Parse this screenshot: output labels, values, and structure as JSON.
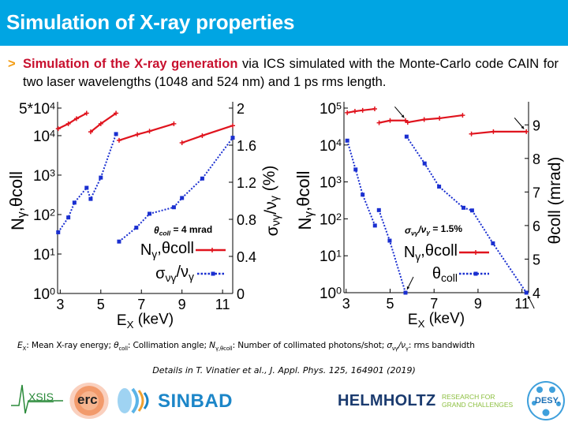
{
  "header": {
    "title": "Simulation of X-ray properties"
  },
  "bullet": {
    "marker": ">",
    "highlight": "Simulation of the X-ray generation",
    "text": " via ICS simulated with the Monte-Carlo code CAIN for two laser wavelengths (1048 and 524 nm) and 1 ps rms length."
  },
  "colors": {
    "header": "#00a5e3",
    "highlight": "#c8102e",
    "bullet_marker": "#f39c12",
    "series_red": "#e0141e",
    "series_blue": "#1a2fd0"
  },
  "chart_data": [
    {
      "type": "line",
      "xlim": [
        2.87,
        11.5
      ],
      "ylim": [
        1,
        50000
      ],
      "y_scale": "log",
      "y2lim": [
        0,
        2
      ],
      "grid": false,
      "legend_position": "bottom-right",
      "xticks": [
        {
          "value": 3,
          "label": "3"
        },
        {
          "value": 5,
          "label": "5"
        },
        {
          "value": 7,
          "label": "7"
        },
        {
          "value": 9,
          "label": "9"
        },
        {
          "value": 11,
          "label": "11"
        }
      ],
      "yticks": [
        {
          "value": 50000,
          "label": [
            {
              "t": "5*10"
            },
            {
              "t": "4",
              "sup": true
            }
          ]
        },
        {
          "value": 10000,
          "label": [
            {
              "t": "10"
            },
            {
              "t": "4",
              "sup": true
            }
          ]
        },
        {
          "value": 1000,
          "label": [
            {
              "t": "10"
            },
            {
              "t": "3",
              "sup": true
            }
          ]
        },
        {
          "value": 100,
          "label": [
            {
              "t": "10"
            },
            {
              "t": "2",
              "sup": true
            }
          ]
        },
        {
          "value": 10,
          "label": [
            {
              "t": "10"
            },
            {
              "t": "1",
              "sup": true
            }
          ]
        },
        {
          "value": 1,
          "label": [
            {
              "t": "10"
            },
            {
              "t": "0",
              "sup": true
            }
          ]
        }
      ],
      "y2ticks": [
        {
          "value": 2,
          "label": "2"
        },
        {
          "value": 1.6,
          "label": "1.6"
        },
        {
          "value": 1.2,
          "label": "1.2"
        },
        {
          "value": 0.8,
          "label": "0.8"
        },
        {
          "value": 0.4,
          "label": "0.4"
        },
        {
          "value": 0,
          "label": "0"
        }
      ],
      "xlabel": [
        {
          "t": "E"
        },
        {
          "t": "X",
          "sub": true
        },
        {
          "t": " (keV)"
        }
      ],
      "ylabel": [
        {
          "t": "N"
        },
        {
          "t": "γ",
          "sub": true
        },
        {
          "t": ",θcoll"
        }
      ],
      "y2label": [
        {
          "t": "σ"
        },
        {
          "t": "νγ",
          "sub": true
        },
        {
          "t": "/ν"
        },
        {
          "t": "γ",
          "sub": true
        },
        {
          "t": " (%)"
        }
      ],
      "annotation": [
        {
          "t": "θ",
          "italic": true
        },
        {
          "t": "coll",
          "sub": true,
          "italic": true
        },
        {
          "t": " = 4 mrad"
        }
      ],
      "series": [
        {
          "name": [
            {
              "t": "N"
            },
            {
              "t": "γ",
              "sub": true
            },
            {
              "t": ",θcoll"
            }
          ],
          "axis": "y",
          "color": "#e0141e",
          "style": "solid",
          "marker": "plus",
          "segments": [
            [
              [
                2.9,
                15000
              ],
              [
                3.4,
                20000
              ],
              [
                3.8,
                27000
              ],
              [
                4.3,
                37000
              ]
            ],
            [
              [
                4.5,
                12500
              ],
              [
                5.0,
                20000
              ],
              [
                5.75,
                37000
              ]
            ],
            [
              [
                5.9,
                7600
              ],
              [
                6.8,
                10700
              ],
              [
                7.4,
                13000
              ],
              [
                8.6,
                20000
              ]
            ],
            [
              [
                9.0,
                6600
              ],
              [
                10.0,
                10000
              ],
              [
                11.5,
                18000
              ]
            ]
          ]
        },
        {
          "name": [
            {
              "t": "σ"
            },
            {
              "t": "νγ",
              "sub": true
            },
            {
              "t": "/ν"
            },
            {
              "t": "γ",
              "sub": true
            }
          ],
          "axis": "y2",
          "color": "#1a2fd0",
          "style": "dotted",
          "marker": "square",
          "segments": [
            [
              [
                2.9,
                0.66
              ],
              [
                3.4,
                0.82
              ],
              [
                3.7,
                0.98
              ],
              [
                4.3,
                1.14
              ],
              [
                4.5,
                1.02
              ],
              [
                5.0,
                1.25
              ],
              [
                5.75,
                1.72
              ]
            ],
            [
              [
                5.9,
                0.56
              ],
              [
                6.75,
                0.71
              ],
              [
                7.4,
                0.86
              ],
              [
                8.6,
                0.93
              ],
              [
                9.0,
                1.03
              ],
              [
                10.0,
                1.24
              ],
              [
                11.5,
                1.68
              ]
            ]
          ]
        }
      ]
    },
    {
      "type": "line",
      "xlim": [
        2.9,
        11.3
      ],
      "ylim": [
        1,
        100000
      ],
      "y_scale": "log",
      "y2lim": [
        4,
        9.5
      ],
      "grid": false,
      "legend_position": "bottom-right",
      "xticks": [
        {
          "value": 3,
          "label": "3"
        },
        {
          "value": 5,
          "label": "5"
        },
        {
          "value": 7,
          "label": "7"
        },
        {
          "value": 9,
          "label": "9"
        },
        {
          "value": 11,
          "label": "11"
        }
      ],
      "yticks": [
        {
          "value": 100000,
          "label": [
            {
              "t": "10"
            },
            {
              "t": "5",
              "sup": true
            }
          ]
        },
        {
          "value": 10000,
          "label": [
            {
              "t": "10"
            },
            {
              "t": "4",
              "sup": true
            }
          ]
        },
        {
          "value": 1000,
          "label": [
            {
              "t": "10"
            },
            {
              "t": "3",
              "sup": true
            }
          ]
        },
        {
          "value": 100,
          "label": [
            {
              "t": "10"
            },
            {
              "t": "2",
              "sup": true
            }
          ]
        },
        {
          "value": 10,
          "label": [
            {
              "t": "10"
            },
            {
              "t": "1",
              "sup": true
            }
          ]
        },
        {
          "value": 1,
          "label": [
            {
              "t": "10"
            },
            {
              "t": "0",
              "sup": true
            }
          ]
        }
      ],
      "y2ticks": [
        {
          "value": 9,
          "label": "9"
        },
        {
          "value": 8,
          "label": "8"
        },
        {
          "value": 7,
          "label": "7"
        },
        {
          "value": 6,
          "label": "6"
        },
        {
          "value": 5,
          "label": "5"
        },
        {
          "value": 4,
          "label": "4"
        }
      ],
      "xlabel": [
        {
          "t": "E"
        },
        {
          "t": "X",
          "sub": true
        },
        {
          "t": " (keV)"
        }
      ],
      "ylabel": [
        {
          "t": "N"
        },
        {
          "t": "γ",
          "sub": true
        },
        {
          "t": ",θcoll"
        }
      ],
      "y2label": [
        {
          "t": "θcoll (mrad)"
        }
      ],
      "annotation": [
        {
          "t": "σ",
          "italic": true
        },
        {
          "t": "νγ",
          "sub": true,
          "italic": true
        },
        {
          "t": "/ν",
          "italic": true
        },
        {
          "t": "γ",
          "sub": true,
          "italic": true
        },
        {
          "t": " = 1.5%"
        }
      ],
      "series": [
        {
          "name": [
            {
              "t": "N"
            },
            {
              "t": "γ",
              "sub": true
            },
            {
              "t": ",θcoll"
            }
          ],
          "axis": "y",
          "color": "#e0141e",
          "style": "solid",
          "marker": "plus",
          "segments": [
            [
              [
                3.05,
                75000
              ],
              [
                3.4,
                82000
              ],
              [
                3.75,
                87000
              ],
              [
                4.3,
                95000
              ]
            ],
            [
              [
                4.5,
                40000
              ],
              [
                5.0,
                46000
              ],
              [
                5.7,
                46000
              ],
              [
                5.8,
                41000
              ],
              [
                6.55,
                49000
              ],
              [
                7.25,
                53000
              ],
              [
                8.3,
                64000
              ]
            ],
            [
              [
                8.7,
                20000
              ],
              [
                9.7,
                23000
              ],
              [
                11.2,
                23000
              ]
            ]
          ]
        },
        {
          "name": [
            {
              "t": "θ"
            },
            {
              "t": "coll",
              "sub": true
            }
          ],
          "axis": "y2",
          "color": "#1a2fd0",
          "style": "dotted",
          "marker": "square",
          "segments": [
            [
              [
                3.05,
                8.53
              ],
              [
                3.43,
                7.67
              ],
              [
                3.75,
                6.92
              ],
              [
                4.31,
                6.0
              ]
            ],
            [
              [
                4.49,
                6.46
              ],
              [
                4.98,
                5.55
              ],
              [
                5.7,
                4.0
              ]
            ],
            [
              [
                5.75,
                8.65
              ],
              [
                6.57,
                7.85
              ],
              [
                7.23,
                7.16
              ],
              [
                8.34,
                6.53
              ],
              [
                8.73,
                6.45
              ],
              [
                9.68,
                5.47
              ],
              [
                11.2,
                4.0
              ]
            ]
          ]
        }
      ]
    }
  ],
  "notes": [
    {
      "sym": "E",
      "sub": "X",
      "desc": ": Mean X-ray energy; "
    },
    {
      "sym": "θ",
      "sub": "coll",
      "desc": ": Collimation angle; "
    },
    {
      "sym": "N",
      "sub": "γ,θcoll",
      "desc": ": Number of collimated photons/shot; "
    },
    {
      "sym": "σ",
      "sub": "νγ",
      "sym2": "/ν",
      "sub2": "γ",
      "desc": ": rms bandwidth"
    }
  ],
  "reference": "Details in T. Vinatier et al., J. Appl. Phys. 125, 164901 (2019)",
  "logos": {
    "axsis": "XSIS",
    "erc": "erc",
    "sinbad": "SINBAD",
    "helmholtz": "HELMHOLTZ",
    "helmholtz_tagline_1": "RESEARCH FOR",
    "helmholtz_tagline_2": "GRAND CHALLENGES",
    "desy": "DESY."
  }
}
